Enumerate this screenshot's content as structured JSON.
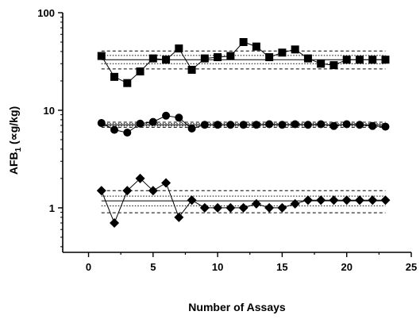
{
  "chart_data": {
    "type": "scatter",
    "xlabel": "Number of Assays",
    "ylabel": "AFB",
    "ylabel_subscript": "1",
    "ylabel_unit": " (∝g/kg)",
    "xlim": [
      -2,
      25
    ],
    "ylim": [
      0.35,
      100
    ],
    "yscale": "log",
    "x_ticks": [
      0,
      5,
      10,
      15,
      20,
      25
    ],
    "y_ticks": [
      1,
      10,
      100
    ],
    "grid": false,
    "legend": "none",
    "series": [
      {
        "marker": "square",
        "x": [
          1,
          2,
          3,
          4,
          5,
          6,
          7,
          8,
          9,
          10,
          11,
          12,
          13,
          14,
          15,
          16,
          17,
          18,
          19,
          20,
          21,
          22,
          23
        ],
        "y": [
          36,
          22,
          19,
          25,
          34,
          33,
          43,
          26,
          34,
          35,
          36,
          50,
          45,
          35,
          39,
          42,
          34,
          30,
          29,
          33,
          33,
          33,
          33
        ],
        "ref_solid": [
          33
        ],
        "ref_dotted": [
          30,
          36.5
        ],
        "ref_dashed": [
          26.5,
          40.5
        ]
      },
      {
        "marker": "circle",
        "x": [
          1,
          2,
          3,
          4,
          5,
          6,
          7,
          8,
          9,
          10,
          11,
          12,
          13,
          14,
          15,
          16,
          17,
          18,
          19,
          20,
          21,
          22,
          23
        ],
        "y": [
          7.4,
          6.3,
          5.9,
          7.3,
          7.6,
          8.8,
          8.4,
          6.5,
          7.1,
          7.1,
          7.1,
          7.1,
          7.1,
          7.2,
          7.1,
          7.2,
          7.1,
          7.2,
          6.9,
          7.2,
          7.1,
          6.9,
          6.8
        ],
        "ref_solid": [
          7.1
        ],
        "ref_dotted": [
          6.9,
          7.3
        ],
        "ref_dashed": [
          6.7,
          7.55
        ]
      },
      {
        "marker": "diamond",
        "x": [
          1,
          2,
          3,
          4,
          5,
          6,
          7,
          8,
          9,
          10,
          11,
          12,
          13,
          14,
          15,
          16,
          17,
          18,
          19,
          20,
          21,
          22,
          23
        ],
        "y": [
          1.5,
          0.7,
          1.5,
          2.0,
          1.5,
          1.8,
          0.8,
          1.2,
          1.0,
          1.0,
          1.0,
          1.0,
          1.1,
          1.0,
          1.0,
          1.1,
          1.2,
          1.2,
          1.2,
          1.2,
          1.2,
          1.2,
          1.2
        ],
        "ref_solid": [
          1.18
        ],
        "ref_dotted": [
          1.05,
          1.32
        ],
        "ref_dashed": [
          0.89,
          1.5
        ]
      }
    ]
  }
}
